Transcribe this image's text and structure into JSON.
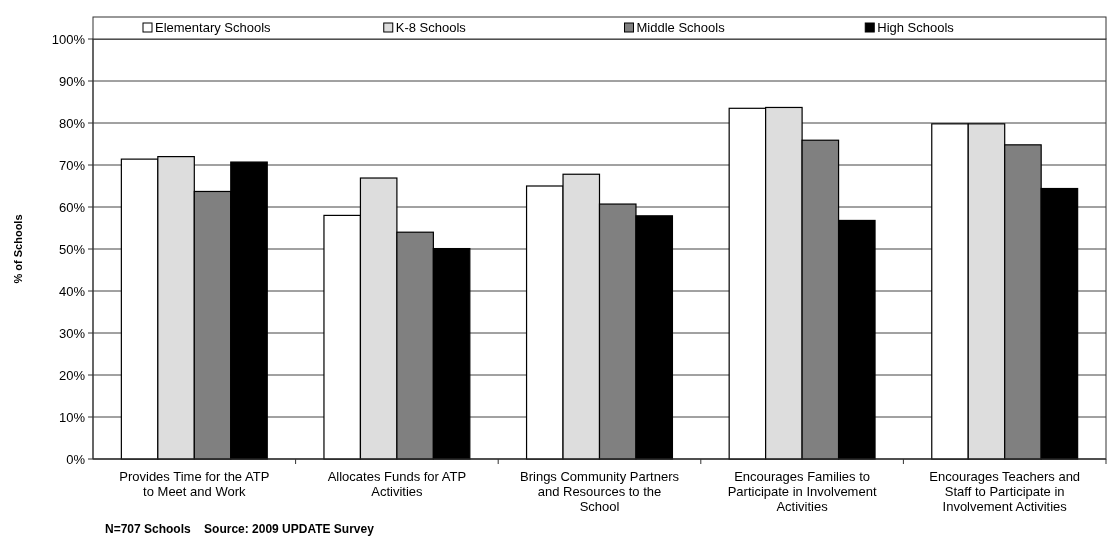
{
  "chart_data": {
    "type": "bar",
    "ylabel": "% of Schools",
    "categories": [
      "Provides Time for the ATP to Meet and Work",
      "Allocates Funds for ATP Activities",
      "Brings Community Partners and Resources to the School",
      "Encourages Families to Participate in Involvement Activities",
      "Encourages Teachers and Staff to Participate in Involvement Activities"
    ],
    "series": [
      {
        "name": "Elementary Schools",
        "color": "#ffffff",
        "values": [
          71.4,
          58.0,
          65.0,
          83.5,
          79.8
        ]
      },
      {
        "name": "K-8 Schools",
        "color": "#dddddd",
        "values": [
          72.0,
          66.9,
          67.8,
          83.7,
          79.8
        ]
      },
      {
        "name": "Middle Schools",
        "color": "#808080",
        "values": [
          63.7,
          54.0,
          60.7,
          75.9,
          74.8
        ]
      },
      {
        "name": "High Schools",
        "color": "#000000",
        "values": [
          70.7,
          50.1,
          57.9,
          56.8,
          64.4
        ]
      }
    ],
    "ylim": [
      0,
      100
    ],
    "yticks": [
      {
        "value": 0,
        "label": "0%"
      },
      {
        "value": 10,
        "label": "10%"
      },
      {
        "value": 20,
        "label": "20%"
      },
      {
        "value": 30,
        "label": "30%"
      },
      {
        "value": 40,
        "label": "40%"
      },
      {
        "value": 50,
        "label": "50%"
      },
      {
        "value": 60,
        "label": "60%"
      },
      {
        "value": 70,
        "label": "70%"
      },
      {
        "value": 80,
        "label": "80%"
      },
      {
        "value": 90,
        "label": "90%"
      },
      {
        "value": 100,
        "label": "100%"
      }
    ],
    "grid": "y",
    "legend": "top",
    "annotations": [
      "N=707 Schools    Source: 2009 UPDATE Survey"
    ]
  }
}
